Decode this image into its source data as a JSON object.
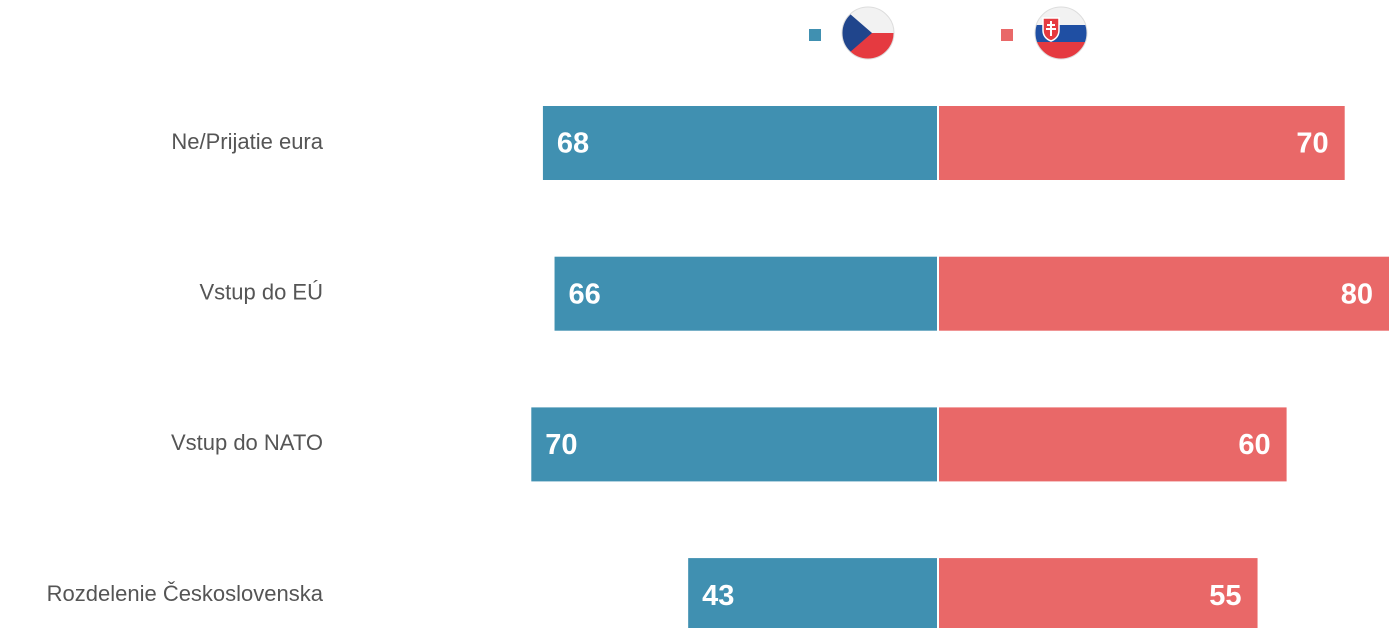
{
  "chart_data": {
    "type": "bar",
    "orientation": "horizontal",
    "diverging": true,
    "categories": [
      "Ne/Prijatie eura",
      "Vstup do EÚ",
      "Vstup do NATO",
      "Rozdelenie Československa"
    ],
    "series": [
      {
        "color": "#4090b1",
        "values": [
          68,
          66,
          70,
          43
        ]
      },
      {
        "color": "#e96868",
        "values": [
          70,
          80,
          60,
          55
        ]
      }
    ]
  }
}
